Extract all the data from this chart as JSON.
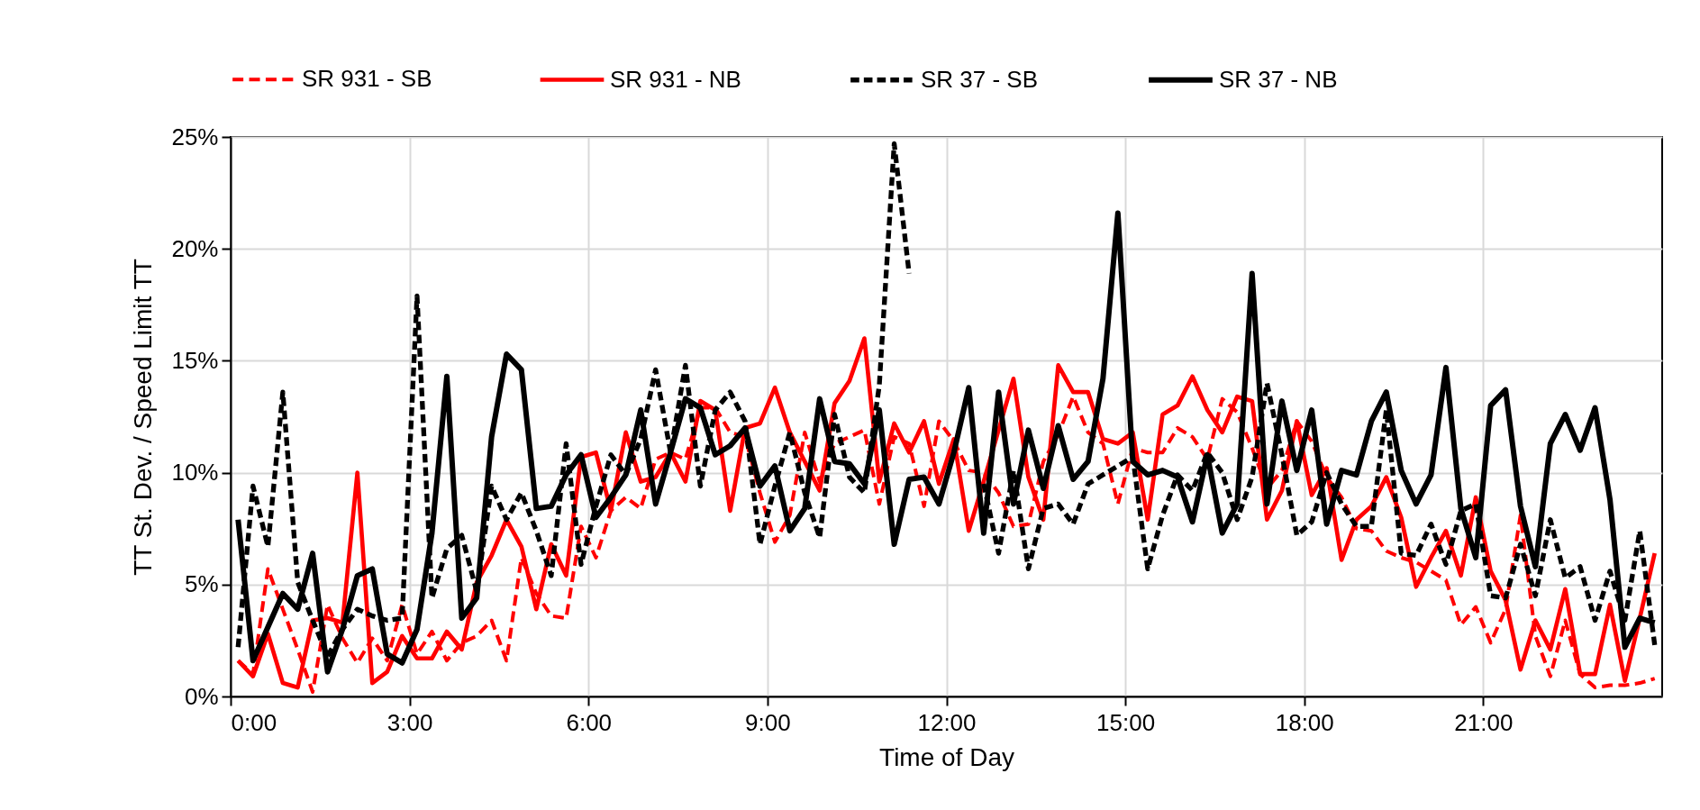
{
  "chart_data": {
    "type": "line",
    "xlabel": "Time of Day",
    "ylabel": "TT St. Dev. / Speed Limit TT",
    "x": [
      0.125,
      0.375,
      0.625,
      0.875,
      1.125,
      1.375,
      1.625,
      1.875,
      2.125,
      2.375,
      2.625,
      2.875,
      3.125,
      3.375,
      3.625,
      3.875,
      4.125,
      4.375,
      4.625,
      4.875,
      5.125,
      5.375,
      5.625,
      5.875,
      6.125,
      6.375,
      6.625,
      6.875,
      7.125,
      7.375,
      7.625,
      7.875,
      8.125,
      8.375,
      8.625,
      8.875,
      9.125,
      9.375,
      9.625,
      9.875,
      10.125,
      10.375,
      10.625,
      10.875,
      11.125,
      11.375,
      11.625,
      11.875,
      12.125,
      12.375,
      12.625,
      12.875,
      13.125,
      13.375,
      13.625,
      13.875,
      14.125,
      14.375,
      14.625,
      14.875,
      15.125,
      15.375,
      15.625,
      15.875,
      16.125,
      16.375,
      16.625,
      16.875,
      17.125,
      17.375,
      17.625,
      17.875,
      18.125,
      18.375,
      18.625,
      18.875,
      19.125,
      19.375,
      19.625,
      19.875,
      20.125,
      20.375,
      20.625,
      20.875,
      21.125,
      21.375,
      21.625,
      21.875,
      22.125,
      22.375,
      22.625,
      22.875,
      23.125,
      23.375,
      23.625,
      23.875
    ],
    "series": [
      {
        "name": "SR 931 - SB",
        "color": "#ff0000",
        "line_style": "dashed",
        "values": [
          1.6,
          1.0,
          5.7,
          3.9,
          2.1,
          0.2,
          4.1,
          2.6,
          1.5,
          2.6,
          1.6,
          4.1,
          1.9,
          2.9,
          1.6,
          2.4,
          2.7,
          3.4,
          1.6,
          6.2,
          4.6,
          3.6,
          3.5,
          7.6,
          6.2,
          8.3,
          8.9,
          8.4,
          10.6,
          10.9,
          10.6,
          12.9,
          12.9,
          11.8,
          11.6,
          9.1,
          6.9,
          8.1,
          11.8,
          9.6,
          11.3,
          11.6,
          11.9,
          8.6,
          11.6,
          11.3,
          8.5,
          12.3,
          11.4,
          10.1,
          10.0,
          9.1,
          7.6,
          7.7,
          10.5,
          11.7,
          13.4,
          11.8,
          11.3,
          8.6,
          11.1,
          10.9,
          10.9,
          12.0,
          11.6,
          10.6,
          13.3,
          12.7,
          11.1,
          9.3,
          10.1,
          12.3,
          11.4,
          9.8,
          8.9,
          7.5,
          7.4,
          6.5,
          6.2,
          6.0,
          5.6,
          5.2,
          3.2,
          4.0,
          2.4,
          3.9,
          8.1,
          2.7,
          0.9,
          3.4,
          1.0,
          0.4,
          0.5,
          0.5,
          0.6,
          0.8
        ]
      },
      {
        "name": "SR 931 - NB",
        "color": "#ff0000",
        "line_style": "solid",
        "values": [
          1.6,
          0.9,
          2.8,
          0.6,
          0.4,
          3.4,
          3.5,
          3.3,
          10.0,
          0.6,
          1.1,
          2.7,
          1.7,
          1.7,
          2.9,
          2.1,
          5.1,
          6.3,
          7.9,
          6.7,
          3.9,
          6.8,
          5.4,
          10.7,
          10.9,
          8.3,
          11.8,
          9.6,
          9.8,
          10.9,
          9.6,
          13.2,
          12.8,
          8.3,
          12.0,
          12.2,
          13.8,
          11.8,
          10.5,
          9.2,
          13.1,
          14.1,
          16.0,
          9.6,
          12.2,
          10.9,
          12.3,
          9.5,
          11.5,
          7.4,
          9.6,
          11.9,
          14.2,
          9.8,
          7.9,
          14.8,
          13.6,
          13.6,
          11.5,
          11.3,
          11.8,
          7.9,
          12.6,
          13.0,
          14.3,
          12.8,
          11.8,
          13.4,
          13.2,
          7.9,
          9.2,
          12.3,
          9.0,
          10.2,
          6.1,
          7.9,
          8.5,
          9.8,
          8.0,
          4.9,
          6.2,
          7.4,
          5.4,
          8.9,
          5.6,
          4.3,
          1.2,
          3.4,
          2.1,
          4.8,
          1.0,
          1.0,
          4.1,
          0.7,
          3.5,
          6.4
        ]
      },
      {
        "name": "SR 37 - SB",
        "color": "#000000",
        "line_style": "dashed",
        "values": [
          2.2,
          9.4,
          6.7,
          13.6,
          5.1,
          3.4,
          1.8,
          3.0,
          3.9,
          3.6,
          3.4,
          3.5,
          17.9,
          4.4,
          6.6,
          7.2,
          4.7,
          9.4,
          7.9,
          9.1,
          7.4,
          5.4,
          11.3,
          5.9,
          8.5,
          10.8,
          9.9,
          11.5,
          14.6,
          10.9,
          14.8,
          9.4,
          12.8,
          13.6,
          12.3,
          6.8,
          9.4,
          11.8,
          9.1,
          7.1,
          12.6,
          9.8,
          9.1,
          13.9,
          24.7,
          18.9,
          null,
          null,
          null,
          null,
          9.5,
          6.4,
          10.1,
          5.7,
          8.4,
          8.6,
          7.7,
          9.5,
          9.9,
          10.3,
          10.7,
          5.7,
          8.1,
          9.9,
          9.2,
          10.9,
          10.0,
          7.9,
          9.8,
          14.0,
          10.8,
          7.2,
          7.8,
          10.0,
          8.6,
          7.6,
          7.6,
          12.8,
          6.4,
          6.3,
          7.7,
          5.9,
          8.3,
          8.6,
          4.5,
          4.4,
          6.8,
          4.5,
          7.9,
          5.3,
          5.8,
          3.4,
          5.6,
          3.4,
          7.4,
          2.3
        ]
      },
      {
        "name": "SR 37 - NB",
        "color": "#000000",
        "line_style": "solid",
        "values": [
          7.9,
          1.6,
          3.1,
          4.6,
          3.9,
          6.4,
          1.1,
          3.0,
          5.4,
          5.7,
          1.9,
          1.5,
          3.0,
          7.3,
          14.3,
          3.5,
          4.4,
          11.6,
          15.3,
          14.6,
          8.4,
          8.5,
          9.9,
          10.8,
          8.0,
          8.9,
          9.9,
          12.8,
          8.6,
          10.9,
          13.3,
          12.9,
          10.8,
          11.2,
          12.0,
          9.4,
          10.3,
          7.4,
          8.4,
          13.3,
          10.5,
          10.4,
          9.5,
          12.8,
          6.8,
          9.7,
          9.8,
          8.6,
          10.9,
          13.8,
          7.3,
          13.6,
          8.6,
          11.9,
          9.3,
          12.1,
          9.7,
          10.5,
          14.2,
          21.6,
          10.5,
          9.9,
          10.1,
          9.8,
          7.8,
          10.8,
          7.3,
          8.6,
          18.9,
          8.6,
          13.2,
          10.1,
          12.8,
          7.7,
          10.1,
          9.9,
          12.3,
          13.6,
          10.1,
          8.6,
          9.9,
          14.7,
          8.4,
          6.2,
          13.0,
          13.7,
          8.5,
          5.8,
          11.3,
          12.6,
          11.0,
          12.9,
          8.8,
          2.2,
          3.5,
          3.3
        ]
      }
    ],
    "xlim": [
      0,
      24
    ],
    "xticks": [
      {
        "value": 0,
        "label": "0:00"
      },
      {
        "value": 3,
        "label": "3:00"
      },
      {
        "value": 6,
        "label": "6:00"
      },
      {
        "value": 9,
        "label": "9:00"
      },
      {
        "value": 12,
        "label": "12:00"
      },
      {
        "value": 15,
        "label": "15:00"
      },
      {
        "value": 18,
        "label": "18:00"
      },
      {
        "value": 21,
        "label": "21:00"
      }
    ],
    "ylim": [
      0,
      25
    ],
    "yticks": [
      {
        "value": 0,
        "label": "0%"
      },
      {
        "value": 5,
        "label": "5%"
      },
      {
        "value": 10,
        "label": "10%"
      },
      {
        "value": 15,
        "label": "15%"
      },
      {
        "value": 20,
        "label": "20%"
      },
      {
        "value": 25,
        "label": "25%"
      }
    ],
    "grid": true,
    "legend": "top",
    "marker": "none"
  }
}
